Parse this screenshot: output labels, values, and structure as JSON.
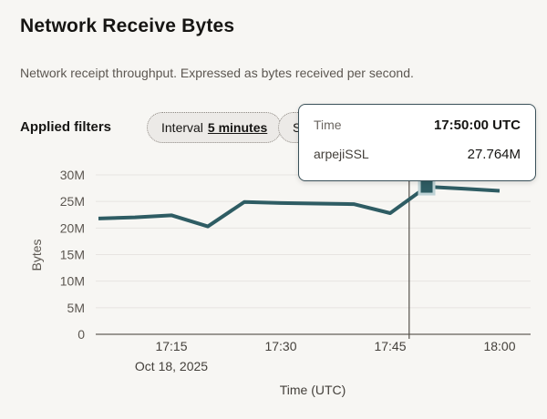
{
  "header": {
    "title": "Network Receive Bytes",
    "subtitle": "Network receipt throughput. Expressed as bytes received per second."
  },
  "filters": {
    "label": "Applied filters",
    "interval_pill": {
      "name": "Interval",
      "value": "5 minutes"
    },
    "statistic_pill": {
      "visible_text": "S"
    }
  },
  "tooltip": {
    "rows": [
      {
        "label": "Time",
        "value": "17:50:00 UTC"
      },
      {
        "label": "arpejiSSL",
        "value": "27.764M"
      }
    ]
  },
  "colors": {
    "background": "#f7f6f3",
    "line": "#2e5c63",
    "marker_fill": "#2e5c63",
    "marker_border": "#bfd3d6",
    "gridline": "#e7e4e1",
    "axis_baseline": "#7d7872",
    "crosshair": "#55514b",
    "tooltip_border": "#3a5159",
    "tick_text": "#5c5751"
  },
  "chart_data": {
    "type": "line",
    "title": "Network Receive Bytes",
    "xlabel": "Time (UTC)",
    "ylabel": "Bytes",
    "x_date_label": "Oct 18, 2025",
    "x_unit": "minutes after 17:00 UTC",
    "xlim": [
      5,
      60
    ],
    "ylim": [
      0,
      30000000
    ],
    "grid": true,
    "legend_position": "none",
    "x_ticks": [
      {
        "minute": 15,
        "label": "17:15"
      },
      {
        "minute": 30,
        "label": "17:30"
      },
      {
        "minute": 45,
        "label": "17:45"
      },
      {
        "minute": 60,
        "label": "18:00"
      }
    ],
    "y_ticks": [
      {
        "value": 0,
        "label": "0"
      },
      {
        "value": 5000000,
        "label": "5M"
      },
      {
        "value": 10000000,
        "label": "10M"
      },
      {
        "value": 15000000,
        "label": "15M"
      },
      {
        "value": 20000000,
        "label": "20M"
      },
      {
        "value": 25000000,
        "label": "25M"
      },
      {
        "value": 30000000,
        "label": "30M"
      }
    ],
    "series": [
      {
        "name": "arpejiSSL",
        "color": "#2e5c63",
        "x_minutes": [
          5,
          10,
          15,
          20,
          25,
          30,
          35,
          40,
          45,
          50,
          55,
          60
        ],
        "x_labels": [
          "17:05",
          "17:10",
          "17:15",
          "17:20",
          "17:25",
          "17:30",
          "17:35",
          "17:40",
          "17:45",
          "17:50",
          "17:55",
          "18:00"
        ],
        "values_bytes": [
          21800000,
          22000000,
          22400000,
          20300000,
          24900000,
          24700000,
          24600000,
          24500000,
          22800000,
          27764000,
          27400000,
          27000000
        ]
      }
    ],
    "highlight": {
      "series": "arpejiSSL",
      "index": 9,
      "x_label": "17:50",
      "value_label": "27.764M"
    },
    "crosshair_minute": 47.6
  }
}
